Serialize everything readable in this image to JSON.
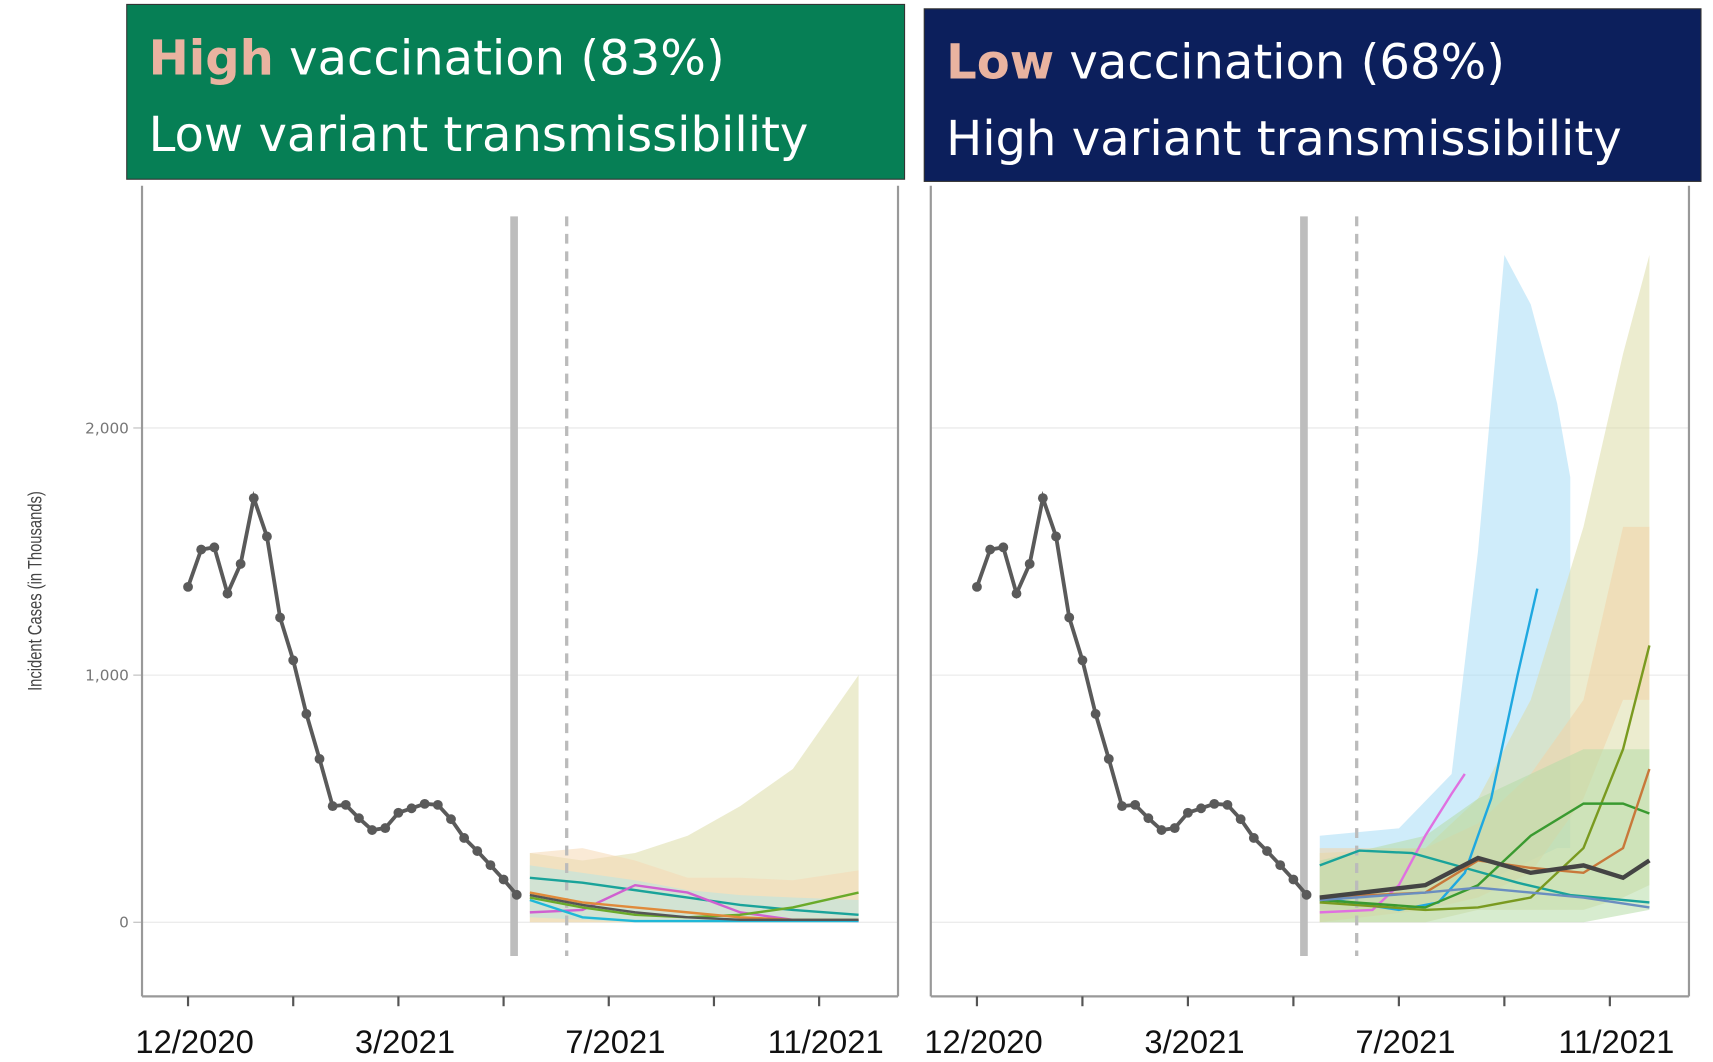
{
  "chart_data": [
    {
      "type": "line",
      "title_highlight": "High",
      "title_rest": "vaccination (83%)",
      "subtitle": "Low variant transmissibility",
      "header_color": "#067f55",
      "highlight_color": "#e9b3a0",
      "y_label": "Incident Cases (in Thousands)",
      "xlim": [
        -3.5,
        54
      ],
      "ylim": [
        -300,
        2980
      ],
      "xticks": [
        {
          "value": 0,
          "label": "12/2020"
        },
        {
          "value": 16,
          "label": "3/2021"
        },
        {
          "value": 32,
          "label": "7/2021"
        },
        {
          "value": 48,
          "label": "11/2021"
        }
      ],
      "minor_xticks": [
        8,
        24,
        40
      ],
      "yticks": [
        {
          "value": 0,
          "label": "0"
        },
        {
          "value": 1000,
          "label": "1,000"
        },
        {
          "value": 2000,
          "label": "2,000"
        }
      ],
      "grid": true,
      "vlines": [
        {
          "x": 24.8,
          "style": "solid"
        },
        {
          "x": 28.8,
          "style": "dashed"
        }
      ],
      "observed": {
        "color": "#5a5a5a",
        "x": [
          0,
          1,
          2,
          3,
          4,
          5,
          6,
          7,
          8,
          9,
          10,
          11,
          12,
          13,
          14,
          15,
          16,
          17,
          18,
          19,
          20,
          21,
          22,
          23,
          24,
          25
        ],
        "values": [
          1357,
          1508,
          1517,
          1330,
          1450,
          1716,
          1561,
          1233,
          1060,
          843,
          661,
          470,
          475,
          421,
          373,
          381,
          443,
          461,
          479,
          475,
          417,
          341,
          288,
          231,
          173,
          111
        ]
      },
      "bands": [
        {
          "color": "#dcdca8",
          "x": [
            26,
            30,
            34,
            38,
            42,
            46,
            51
          ],
          "lower": [
            0,
            0,
            0,
            0,
            0,
            0,
            0
          ],
          "upper": [
            280,
            250,
            280,
            350,
            470,
            620,
            1000
          ]
        },
        {
          "color": "#f6d8b4",
          "x": [
            26,
            30,
            34,
            38,
            42,
            46,
            51
          ],
          "lower": [
            0,
            0,
            0,
            0,
            0,
            0,
            0
          ],
          "upper": [
            280,
            300,
            250,
            180,
            180,
            170,
            210
          ]
        },
        {
          "color": "#b8e6e2",
          "x": [
            26,
            30,
            34,
            38,
            42,
            46,
            51
          ],
          "lower": [
            20,
            10,
            0,
            0,
            0,
            0,
            0
          ],
          "upper": [
            230,
            200,
            170,
            130,
            110,
            100,
            90
          ]
        }
      ],
      "series": [
        {
          "color": "#1aa39a",
          "x": [
            26,
            30,
            34,
            38,
            42,
            46,
            51
          ],
          "values": [
            180,
            160,
            130,
            100,
            70,
            50,
            30
          ]
        },
        {
          "color": "#d060d0",
          "x": [
            26,
            30,
            34,
            38,
            42,
            46,
            51
          ],
          "values": [
            40,
            50,
            150,
            120,
            40,
            10,
            5
          ]
        },
        {
          "color": "#6aaa2a",
          "x": [
            26,
            30,
            34,
            38,
            42,
            46,
            51
          ],
          "values": [
            100,
            60,
            30,
            20,
            30,
            60,
            120
          ]
        },
        {
          "color": "#e08a3a",
          "x": [
            26,
            30,
            34,
            38,
            42,
            46,
            51
          ],
          "values": [
            120,
            80,
            60,
            40,
            20,
            10,
            10
          ]
        },
        {
          "color": "#20b8d8",
          "x": [
            26,
            30,
            34,
            38,
            42,
            46,
            51
          ],
          "values": [
            90,
            20,
            5,
            5,
            5,
            5,
            5
          ]
        },
        {
          "color": "#555555",
          "x": [
            26,
            30,
            34,
            38,
            42,
            46,
            51
          ],
          "values": [
            110,
            70,
            40,
            20,
            10,
            10,
            10
          ]
        }
      ]
    },
    {
      "type": "line",
      "title_highlight": "Low",
      "title_rest": "vaccination (68%)",
      "subtitle": "High variant transmissibility",
      "header_color": "#0c1f5c",
      "highlight_color": "#e9b3a0",
      "xlim": [
        -3.5,
        54
      ],
      "ylim": [
        -300,
        2980
      ],
      "xticks": [
        {
          "value": 0,
          "label": "12/2020"
        },
        {
          "value": 16,
          "label": "3/2021"
        },
        {
          "value": 32,
          "label": "7/2021"
        },
        {
          "value": 48,
          "label": "11/2021"
        }
      ],
      "minor_xticks": [
        8,
        24,
        40
      ],
      "yticks": [
        0,
        1000,
        2000
      ],
      "grid": true,
      "vlines": [
        {
          "x": 24.8,
          "style": "solid"
        },
        {
          "x": 28.8,
          "style": "dashed"
        }
      ],
      "observed": {
        "color": "#5a5a5a",
        "x": [
          0,
          1,
          2,
          3,
          4,
          5,
          6,
          7,
          8,
          9,
          10,
          11,
          12,
          13,
          14,
          15,
          16,
          17,
          18,
          19,
          20,
          21,
          22,
          23,
          24,
          25
        ],
        "values": [
          1357,
          1508,
          1517,
          1330,
          1450,
          1716,
          1561,
          1233,
          1060,
          843,
          661,
          470,
          475,
          421,
          373,
          381,
          443,
          461,
          479,
          475,
          417,
          341,
          288,
          231,
          173,
          111
        ]
      },
      "bands": [
        {
          "color": "#a8dcf5",
          "x": [
            26,
            32,
            36,
            38,
            40,
            42,
            44,
            45
          ],
          "lower": [
            50,
            50,
            100,
            150,
            200,
            250,
            300,
            300
          ],
          "upper": [
            350,
            380,
            600,
            1500,
            2700,
            2500,
            2100,
            1800
          ]
        },
        {
          "color": "#dcdca8",
          "x": [
            26,
            34,
            38,
            42,
            46,
            49,
            51
          ],
          "lower": [
            0,
            0,
            50,
            50,
            50,
            100,
            150
          ],
          "upper": [
            280,
            300,
            500,
            900,
            1600,
            2300,
            2700
          ]
        },
        {
          "color": "#f3d3a8",
          "x": [
            26,
            34,
            38,
            42,
            46,
            49,
            51
          ],
          "lower": [
            0,
            50,
            100,
            200,
            500,
            900,
            900
          ],
          "upper": [
            300,
            300,
            400,
            600,
            900,
            1600,
            1600
          ]
        },
        {
          "color": "#b6dca8",
          "x": [
            26,
            34,
            38,
            42,
            46,
            51
          ],
          "lower": [
            0,
            0,
            0,
            0,
            0,
            50
          ],
          "upper": [
            250,
            350,
            500,
            600,
            700,
            700
          ]
        }
      ],
      "series": [
        {
          "color": "#1fa8e0",
          "x": [
            26,
            32,
            35,
            37,
            39,
            41,
            42.5
          ],
          "values": [
            100,
            50,
            80,
            200,
            500,
            1000,
            1350
          ]
        },
        {
          "color": "#e070e0",
          "x": [
            26,
            30,
            32,
            34,
            36,
            37
          ],
          "values": [
            40,
            50,
            150,
            350,
            520,
            600
          ]
        },
        {
          "color": "#1aa39a",
          "x": [
            26,
            29,
            33,
            37,
            41,
            45,
            51
          ],
          "values": [
            230,
            290,
            280,
            220,
            160,
            110,
            80
          ]
        },
        {
          "color": "#7a9a20",
          "x": [
            26,
            34,
            38,
            42,
            46,
            49,
            51
          ],
          "values": [
            80,
            50,
            60,
            100,
            300,
            700,
            1120
          ]
        },
        {
          "color": "#3a9a30",
          "x": [
            26,
            34,
            38,
            42,
            46,
            49,
            51
          ],
          "values": [
            90,
            60,
            150,
            350,
            480,
            480,
            440
          ]
        },
        {
          "color": "#c8783a",
          "x": [
            26,
            34,
            38,
            42,
            46,
            49,
            51
          ],
          "values": [
            100,
            120,
            250,
            220,
            200,
            300,
            620
          ]
        },
        {
          "color": "#6a8ec0",
          "x": [
            26,
            34,
            38,
            42,
            46,
            51
          ],
          "values": [
            90,
            120,
            140,
            120,
            100,
            60
          ]
        },
        {
          "color": "#444444",
          "x": [
            26,
            34,
            38,
            42,
            46,
            49,
            51
          ],
          "values": [
            100,
            150,
            260,
            200,
            230,
            180,
            250
          ]
        }
      ]
    }
  ]
}
